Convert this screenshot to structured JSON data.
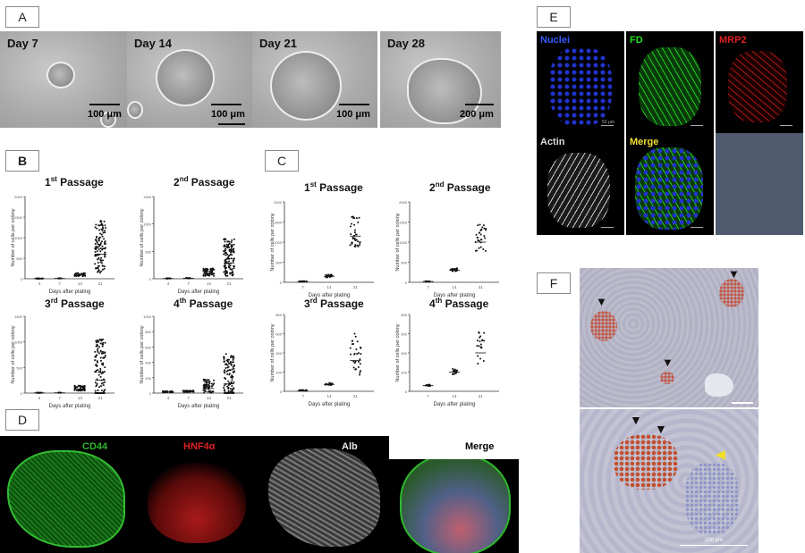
{
  "panels": {
    "A": {
      "letter": "A",
      "images": [
        {
          "day": "Day 7",
          "scale": "100 μm"
        },
        {
          "day": "Day 14",
          "scale": "100 μm"
        },
        {
          "day": "Day 21",
          "scale": "100 μm"
        },
        {
          "day": "Day 28",
          "scale": "200 μm"
        }
      ]
    },
    "B": {
      "letter": "B"
    },
    "C": {
      "letter": "C"
    },
    "D": {
      "letter": "D",
      "channels": [
        {
          "label": "CD44",
          "color": "#2db82d"
        },
        {
          "label": "HNF4α",
          "color": "#e02020"
        },
        {
          "label": "Alb",
          "color": "#e8e8e8"
        },
        {
          "label": "Merge",
          "color": "#000000"
        }
      ]
    },
    "E": {
      "letter": "E",
      "channels": [
        {
          "label": "Nuclei",
          "color": "#3a5cff"
        },
        {
          "label": "FD",
          "color": "#22dd22"
        },
        {
          "label": "MRP2",
          "color": "#dd2020"
        },
        {
          "label": "Actin",
          "color": "#dddddd"
        },
        {
          "label": "Merge",
          "color": "#f0e030"
        }
      ],
      "scale": "50 μm"
    },
    "F": {
      "letter": "F",
      "scale": "200 μm"
    }
  },
  "chart_data": [
    {
      "panel": "B",
      "type": "scatter",
      "title_base": "1",
      "title_sup": "st",
      "title_rest": " Passage",
      "ylabel": "Number of cells per colony",
      "xlabel": "Days after plating",
      "categories": [
        "4",
        "7",
        "14",
        "21"
      ],
      "ylim": [
        0,
        2000
      ],
      "yticks": [
        "0",
        "500",
        "1000",
        "1500",
        "2000"
      ],
      "series": [
        {
          "values": [
            5,
            8,
            90,
            600
          ],
          "spread": [
            5,
            10,
            80,
            1300
          ],
          "n": [
            20,
            10,
            40,
            110
          ]
        }
      ]
    },
    {
      "panel": "B",
      "type": "scatter",
      "title_base": "2",
      "title_sup": "nd",
      "title_rest": " Passage",
      "ylabel": "Number of cells per colony",
      "xlabel": "Days after plating",
      "categories": [
        "4",
        "7",
        "14",
        "21"
      ],
      "ylim": [
        0,
        1500
      ],
      "yticks": [
        "0",
        "500",
        "1000",
        "1500"
      ],
      "series": [
        {
          "values": [
            5,
            10,
            100,
            280
          ],
          "spread": [
            5,
            10,
            140,
            700
          ],
          "n": [
            15,
            15,
            50,
            120
          ]
        }
      ]
    },
    {
      "panel": "B",
      "type": "scatter",
      "title_base": "3",
      "title_sup": "rd",
      "title_rest": " Passage",
      "ylabel": "Number of cells per colony",
      "xlabel": "Days after plating",
      "categories": [
        "4",
        "7",
        "14",
        "21"
      ],
      "ylim": [
        0,
        1500
      ],
      "yticks": [
        "0",
        "500",
        "1000",
        "1500"
      ],
      "series": [
        {
          "values": [
            5,
            6,
            80,
            250
          ],
          "spread": [
            5,
            5,
            100,
            1250
          ],
          "n": [
            15,
            8,
            50,
            120
          ]
        }
      ]
    },
    {
      "panel": "B",
      "type": "scatter",
      "title_base": "4",
      "title_sup": "th",
      "title_rest": " Passage",
      "ylabel": "Number of cells per colony",
      "xlabel": "Days after plating",
      "categories": [
        "4",
        "7",
        "14",
        "21"
      ],
      "ylim": [
        0,
        1000
      ],
      "yticks": [
        "0",
        "200",
        "400",
        "600",
        "800",
        "1000"
      ],
      "series": [
        {
          "values": [
            15,
            20,
            60,
            120
          ],
          "spread": [
            15,
            20,
            180,
            600
          ],
          "n": [
            30,
            40,
            60,
            110
          ]
        }
      ]
    },
    {
      "panel": "C",
      "type": "scatter",
      "title_base": "1",
      "title_sup": "st",
      "title_rest": " Passage",
      "ylabel": "Number of cells per colony",
      "xlabel": "Days after plating",
      "categories": [
        "7",
        "14",
        "21"
      ],
      "ylim": [
        0,
        2000
      ],
      "yticks": [
        "0",
        "500",
        "1000",
        "1500",
        "2000"
      ],
      "series": [
        {
          "values": [
            20,
            150,
            1150
          ],
          "spread": [
            15,
            80,
            750
          ],
          "n": [
            20,
            20,
            35
          ]
        }
      ]
    },
    {
      "panel": "C",
      "type": "scatter",
      "title_base": "2",
      "title_sup": "nd",
      "title_rest": " Passage",
      "ylabel": "Number of cells per colony",
      "xlabel": "Days after plating",
      "categories": [
        "7",
        "14",
        "21"
      ],
      "ylim": [
        0,
        2000
      ],
      "yticks": [
        "0",
        "500",
        "1000",
        "1500",
        "2000"
      ],
      "series": [
        {
          "values": [
            20,
            300,
            1000
          ],
          "spread": [
            10,
            80,
            700
          ],
          "n": [
            15,
            20,
            30
          ]
        }
      ]
    },
    {
      "panel": "C",
      "type": "scatter",
      "title_base": "3",
      "title_sup": "rd",
      "title_rest": " Passage",
      "ylabel": "Number of cells per colony",
      "xlabel": "Days after plating",
      "categories": [
        "7",
        "14",
        "21"
      ],
      "ylim": [
        0,
        1000
      ],
      "yticks": [
        "0",
        "200",
        "400",
        "600",
        "800"
      ],
      "series": [
        {
          "values": [
            10,
            90,
            400
          ],
          "spread": [
            10,
            30,
            550
          ],
          "n": [
            20,
            20,
            30
          ]
        }
      ]
    },
    {
      "panel": "C",
      "type": "scatter",
      "title_base": "4",
      "title_sup": "th",
      "title_rest": " Passage",
      "ylabel": "Number of cells per colony",
      "xlabel": "Days after plating",
      "categories": [
        "7",
        "14",
        "21"
      ],
      "ylim": [
        0,
        800
      ],
      "yticks": [
        "0",
        "200",
        "400",
        "600",
        "800"
      ],
      "series": [
        {
          "values": [
            60,
            200,
            400
          ],
          "spread": [
            15,
            80,
            350
          ],
          "n": [
            15,
            15,
            20
          ]
        }
      ]
    }
  ]
}
